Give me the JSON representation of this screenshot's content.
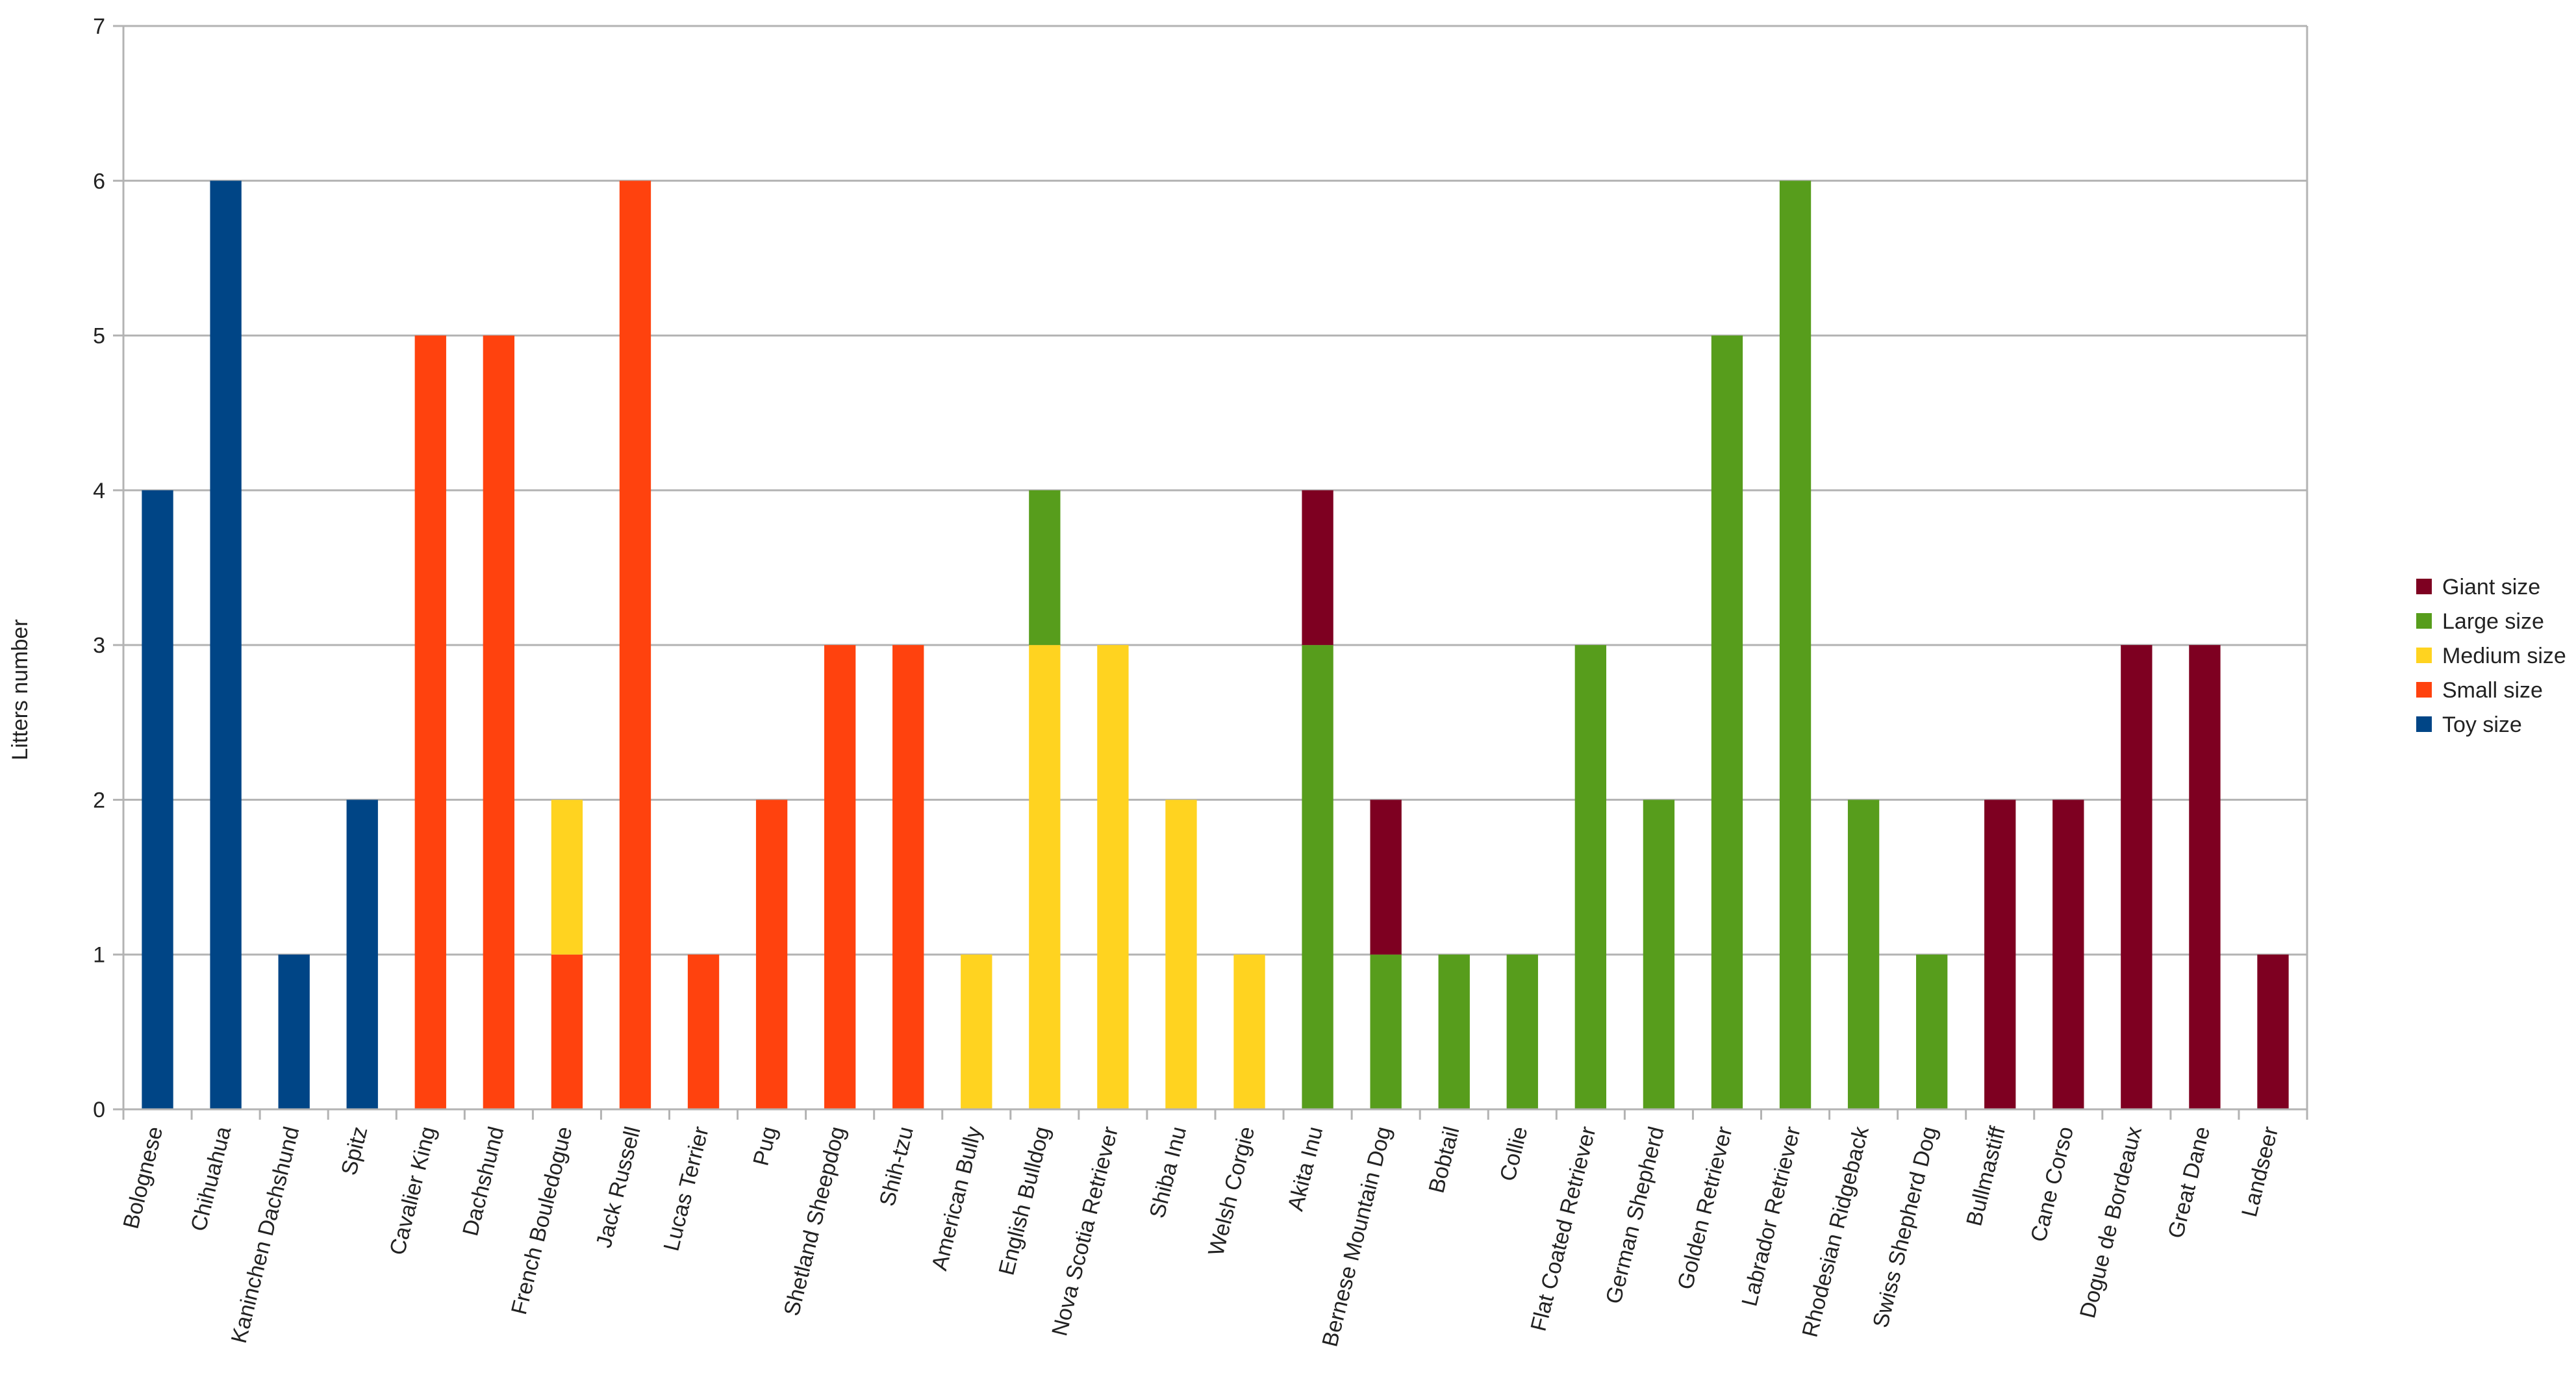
{
  "chart_data": {
    "type": "bar",
    "stacked": true,
    "title": "",
    "xlabel": "",
    "ylabel": "Litters number",
    "ylim": [
      0,
      7
    ],
    "yticks": [
      "0",
      "1",
      "2",
      "3",
      "4",
      "5",
      "6",
      "7"
    ],
    "grid": true,
    "legend_position": "right",
    "categories": [
      "Bolognese",
      "Chihuahua",
      "Kaninchen Dachshund",
      "Spitz",
      "Cavalier King",
      "Dachshund",
      "French Bouledogue",
      "Jack Russell",
      "Lucas Terrier",
      "Pug",
      "Shetland Sheepdog",
      "Shih-tzu",
      "American Bully",
      "English Bulldog",
      "Nova Scotia Retriever",
      "Shiba Inu",
      "Welsh Corgie",
      "Akita Inu",
      "Bernese Mountain Dog",
      "Bobtail",
      "Collie",
      "Flat Coated Retriever",
      "German Shepherd",
      "Golden Retriever",
      "Labrador Retriever",
      "Rhodesian Ridgeback",
      "Swiss Shepherd Dog",
      "Bullmastiff",
      "Cane Corso",
      "Dogue de Bordeaux",
      "Great Dane",
      "Landseer"
    ],
    "series": [
      {
        "name": "Toy size",
        "color": "#004586",
        "values": [
          4,
          6,
          1,
          2,
          0,
          0,
          0,
          0,
          0,
          0,
          0,
          0,
          0,
          0,
          0,
          0,
          0,
          0,
          0,
          0,
          0,
          0,
          0,
          0,
          0,
          0,
          0,
          0,
          0,
          0,
          0,
          0
        ]
      },
      {
        "name": "Small size",
        "color": "#ff420e",
        "values": [
          0,
          0,
          0,
          0,
          5,
          5,
          1,
          6,
          1,
          2,
          3,
          3,
          0,
          0,
          0,
          0,
          0,
          0,
          0,
          0,
          0,
          0,
          0,
          0,
          0,
          0,
          0,
          0,
          0,
          0,
          0,
          0
        ]
      },
      {
        "name": "Medium size",
        "color": "#ffd320",
        "values": [
          0,
          0,
          0,
          0,
          0,
          0,
          1,
          0,
          0,
          0,
          0,
          0,
          1,
          3,
          3,
          2,
          1,
          0,
          0,
          0,
          0,
          0,
          0,
          0,
          0,
          0,
          0,
          0,
          0,
          0,
          0,
          0
        ]
      },
      {
        "name": "Large size",
        "color": "#579d1c",
        "values": [
          0,
          0,
          0,
          0,
          0,
          0,
          0,
          0,
          0,
          0,
          0,
          0,
          0,
          1,
          0,
          0,
          0,
          3,
          1,
          1,
          1,
          3,
          2,
          5,
          6,
          2,
          1,
          0,
          0,
          0,
          0,
          0
        ]
      },
      {
        "name": "Giant size",
        "color": "#7e0021",
        "values": [
          0,
          0,
          0,
          0,
          0,
          0,
          0,
          0,
          0,
          0,
          0,
          0,
          0,
          0,
          0,
          0,
          0,
          1,
          1,
          0,
          0,
          0,
          0,
          0,
          0,
          0,
          0,
          2,
          2,
          3,
          3,
          1
        ]
      }
    ],
    "legend_order": [
      "Giant size",
      "Large size",
      "Medium size",
      "Small size",
      "Toy size"
    ]
  }
}
